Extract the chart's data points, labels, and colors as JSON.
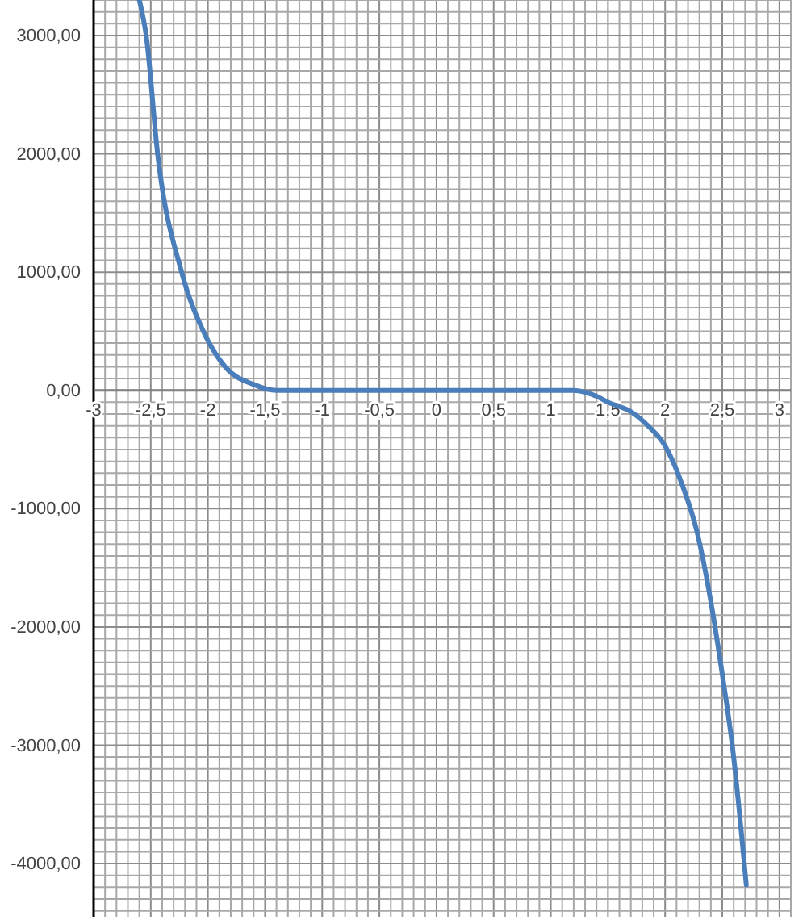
{
  "chart_data": {
    "type": "line",
    "color": "#4a7ebb",
    "grid": true,
    "marker": "none",
    "line_style": "solid",
    "x": [
      -2.6,
      -2.54,
      -2.44,
      -2.23,
      -2.04,
      -1.85,
      -1.6,
      -1.4,
      -1.2,
      -1,
      0,
      1,
      1.2,
      1.4,
      1.5,
      1.7,
      1.85,
      2,
      2.15,
      2.28,
      2.42,
      2.5,
      2.59,
      2.71
    ],
    "values": [
      3300,
      3000,
      2000,
      1000,
      500,
      200,
      50,
      0,
      0,
      0,
      0,
      0,
      0,
      -50,
      -100,
      -180,
      -300,
      -470,
      -800,
      -1200,
      -1900,
      -2400,
      -3020,
      -4180
    ],
    "xlim": [
      -3,
      3.1
    ],
    "ylim": [
      -4450,
      3300
    ],
    "xticks": [
      {
        "value": -3,
        "label": "-3"
      },
      {
        "value": -2.9,
        "label": null
      },
      {
        "value": -2.8,
        "label": null
      },
      {
        "value": -2.7,
        "label": null
      },
      {
        "value": -2.6,
        "label": null
      },
      {
        "value": -2.5,
        "label": "-2,5"
      },
      {
        "value": -2.4,
        "label": null
      },
      {
        "value": -2.3,
        "label": null
      },
      {
        "value": -2.2,
        "label": null
      },
      {
        "value": -2.1,
        "label": null
      },
      {
        "value": -2,
        "label": "-2"
      },
      {
        "value": -1.9,
        "label": null
      },
      {
        "value": -1.8,
        "label": null
      },
      {
        "value": -1.7,
        "label": null
      },
      {
        "value": -1.6,
        "label": null
      },
      {
        "value": -1.5,
        "label": "-1,5"
      },
      {
        "value": -1.4,
        "label": null
      },
      {
        "value": -1.3,
        "label": null
      },
      {
        "value": -1.2,
        "label": null
      },
      {
        "value": -1.1,
        "label": null
      },
      {
        "value": -1,
        "label": "-1"
      },
      {
        "value": -0.9,
        "label": null
      },
      {
        "value": -0.8,
        "label": null
      },
      {
        "value": -0.7,
        "label": null
      },
      {
        "value": -0.6,
        "label": null
      },
      {
        "value": -0.5,
        "label": "-0,5"
      },
      {
        "value": -0.4,
        "label": null
      },
      {
        "value": -0.3,
        "label": null
      },
      {
        "value": -0.2,
        "label": null
      },
      {
        "value": -0.1,
        "label": null
      },
      {
        "value": 0,
        "label": "0"
      },
      {
        "value": 0.1,
        "label": null
      },
      {
        "value": 0.2,
        "label": null
      },
      {
        "value": 0.3,
        "label": null
      },
      {
        "value": 0.4,
        "label": null
      },
      {
        "value": 0.5,
        "label": "0,5"
      },
      {
        "value": 0.6,
        "label": null
      },
      {
        "value": 0.7,
        "label": null
      },
      {
        "value": 0.8,
        "label": null
      },
      {
        "value": 0.9,
        "label": null
      },
      {
        "value": 1,
        "label": "1"
      },
      {
        "value": 1.1,
        "label": null
      },
      {
        "value": 1.2,
        "label": null
      },
      {
        "value": 1.3,
        "label": null
      },
      {
        "value": 1.4,
        "label": null
      },
      {
        "value": 1.5,
        "label": "1,5"
      },
      {
        "value": 1.6,
        "label": null
      },
      {
        "value": 1.7,
        "label": null
      },
      {
        "value": 1.8,
        "label": null
      },
      {
        "value": 1.9,
        "label": null
      },
      {
        "value": 2,
        "label": "2"
      },
      {
        "value": 2.1,
        "label": null
      },
      {
        "value": 2.2,
        "label": null
      },
      {
        "value": 2.3,
        "label": null
      },
      {
        "value": 2.4,
        "label": null
      },
      {
        "value": 2.5,
        "label": "2,5"
      },
      {
        "value": 2.6,
        "label": null
      },
      {
        "value": 2.7,
        "label": null
      },
      {
        "value": 2.8,
        "label": null
      },
      {
        "value": 2.9,
        "label": null
      },
      {
        "value": 3,
        "label": "3"
      },
      {
        "value": 3.1,
        "label": null
      }
    ],
    "yticks": [
      {
        "value": 3300,
        "label": null
      },
      {
        "value": 3200,
        "label": null
      },
      {
        "value": 3100,
        "label": null
      },
      {
        "value": 3000,
        "label": "3000,00"
      },
      {
        "value": 2900,
        "label": null
      },
      {
        "value": 2800,
        "label": null
      },
      {
        "value": 2700,
        "label": null
      },
      {
        "value": 2600,
        "label": null
      },
      {
        "value": 2500,
        "label": null
      },
      {
        "value": 2400,
        "label": null
      },
      {
        "value": 2300,
        "label": null
      },
      {
        "value": 2200,
        "label": null
      },
      {
        "value": 2100,
        "label": null
      },
      {
        "value": 2000,
        "label": "2000,00"
      },
      {
        "value": 1900,
        "label": null
      },
      {
        "value": 1800,
        "label": null
      },
      {
        "value": 1700,
        "label": null
      },
      {
        "value": 1600,
        "label": null
      },
      {
        "value": 1500,
        "label": null
      },
      {
        "value": 1400,
        "label": null
      },
      {
        "value": 1300,
        "label": null
      },
      {
        "value": 1200,
        "label": null
      },
      {
        "value": 1100,
        "label": null
      },
      {
        "value": 1000,
        "label": "1000,00"
      },
      {
        "value": 900,
        "label": null
      },
      {
        "value": 800,
        "label": null
      },
      {
        "value": 700,
        "label": null
      },
      {
        "value": 600,
        "label": null
      },
      {
        "value": 500,
        "label": null
      },
      {
        "value": 400,
        "label": null
      },
      {
        "value": 300,
        "label": null
      },
      {
        "value": 200,
        "label": null
      },
      {
        "value": 100,
        "label": null
      },
      {
        "value": 0,
        "label": "0,00"
      },
      {
        "value": -100,
        "label": null
      },
      {
        "value": -200,
        "label": null
      },
      {
        "value": -300,
        "label": null
      },
      {
        "value": -400,
        "label": null
      },
      {
        "value": -500,
        "label": null
      },
      {
        "value": -600,
        "label": null
      },
      {
        "value": -700,
        "label": null
      },
      {
        "value": -800,
        "label": null
      },
      {
        "value": -900,
        "label": null
      },
      {
        "value": -1000,
        "label": "-1000,00"
      },
      {
        "value": -1100,
        "label": null
      },
      {
        "value": -1200,
        "label": null
      },
      {
        "value": -1300,
        "label": null
      },
      {
        "value": -1400,
        "label": null
      },
      {
        "value": -1500,
        "label": null
      },
      {
        "value": -1600,
        "label": null
      },
      {
        "value": -1700,
        "label": null
      },
      {
        "value": -1800,
        "label": null
      },
      {
        "value": -1900,
        "label": null
      },
      {
        "value": -2000,
        "label": "-2000,00"
      },
      {
        "value": -2100,
        "label": null
      },
      {
        "value": -2200,
        "label": null
      },
      {
        "value": -2300,
        "label": null
      },
      {
        "value": -2400,
        "label": null
      },
      {
        "value": -2500,
        "label": null
      },
      {
        "value": -2600,
        "label": null
      },
      {
        "value": -2700,
        "label": null
      },
      {
        "value": -2800,
        "label": null
      },
      {
        "value": -2900,
        "label": null
      },
      {
        "value": -3000,
        "label": "-3000,00"
      },
      {
        "value": -3100,
        "label": null
      },
      {
        "value": -3200,
        "label": null
      },
      {
        "value": -3300,
        "label": null
      },
      {
        "value": -3400,
        "label": null
      },
      {
        "value": -3500,
        "label": null
      },
      {
        "value": -3600,
        "label": null
      },
      {
        "value": -3700,
        "label": null
      },
      {
        "value": -3800,
        "label": null
      },
      {
        "value": -3900,
        "label": null
      },
      {
        "value": -4000,
        "label": "-4000,00"
      },
      {
        "value": -4100,
        "label": null
      },
      {
        "value": -4200,
        "label": null
      },
      {
        "value": -4300,
        "label": null
      },
      {
        "value": -4400,
        "label": null
      }
    ]
  }
}
